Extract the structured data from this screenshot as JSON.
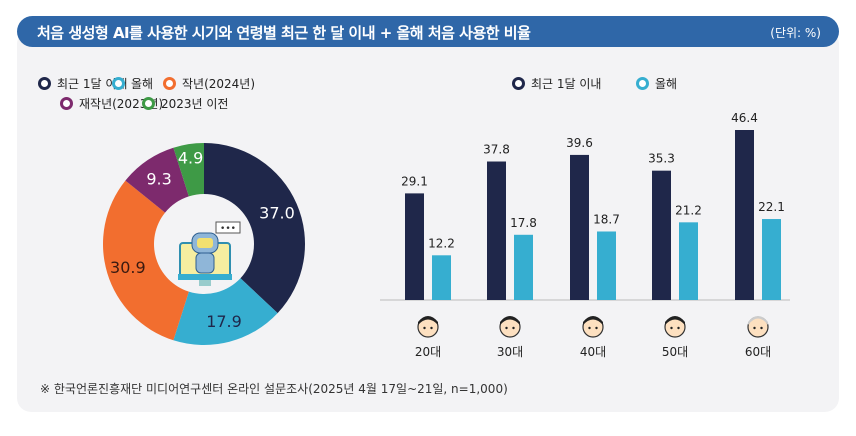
{
  "header": {
    "title": "처음 생성형 AI를 사용한 시기와 연령별 최근 한 달 이내 + 올해 처음 사용한 비율",
    "unit": "(단위: %)"
  },
  "colors": {
    "navy": "#1f274a",
    "blue": "#36aed0",
    "orange": "#f26e2f",
    "purple": "#7d2a6d",
    "green": "#3e9a46",
    "header": "#2f67a8"
  },
  "chart_data": [
    {
      "type": "pie",
      "donut": true,
      "center_icon": "robot-computer-icon",
      "legend": [
        "최근 1달 이내",
        "올해",
        "작년(2024년)",
        "재작년(2023년)",
        "2023년 이전"
      ],
      "slices": [
        {
          "label": "최근 1달 이내",
          "value": 37.0,
          "display": "37.0"
        },
        {
          "label": "올해",
          "value": 17.9,
          "display": "17.9"
        },
        {
          "label": "작년(2024년)",
          "value": 30.9,
          "display": "30.9"
        },
        {
          "label": "재작년(2023년)",
          "value": 9.3,
          "display": "9.3"
        },
        {
          "label": "2023년 이전",
          "value": 4.9,
          "display": "4.9"
        }
      ]
    },
    {
      "type": "bar",
      "categories": [
        "20대",
        "30대",
        "40대",
        "50대",
        "60대"
      ],
      "series": [
        {
          "name": "최근 1달 이내",
          "values": [
            29.1,
            37.8,
            39.6,
            35.3,
            46.4
          ],
          "labels": [
            "29.1",
            "37.8",
            "39.6",
            "35.3",
            "46.4"
          ]
        },
        {
          "name": "올해",
          "values": [
            12.2,
            17.8,
            18.7,
            21.2,
            22.1
          ],
          "labels": [
            "12.2",
            "17.8",
            "18.7",
            "21.2",
            "22.1"
          ]
        }
      ],
      "category_icons": [
        "face-icon",
        "face-icon",
        "face-icon",
        "face-icon",
        "elderly-face-icon"
      ],
      "ylim": [
        0,
        50
      ]
    }
  ],
  "footnote": "※ 한국언론진흥재단 미디어연구센터 온라인 설문조사(2025년 4월 17일~21일, n=1,000)"
}
